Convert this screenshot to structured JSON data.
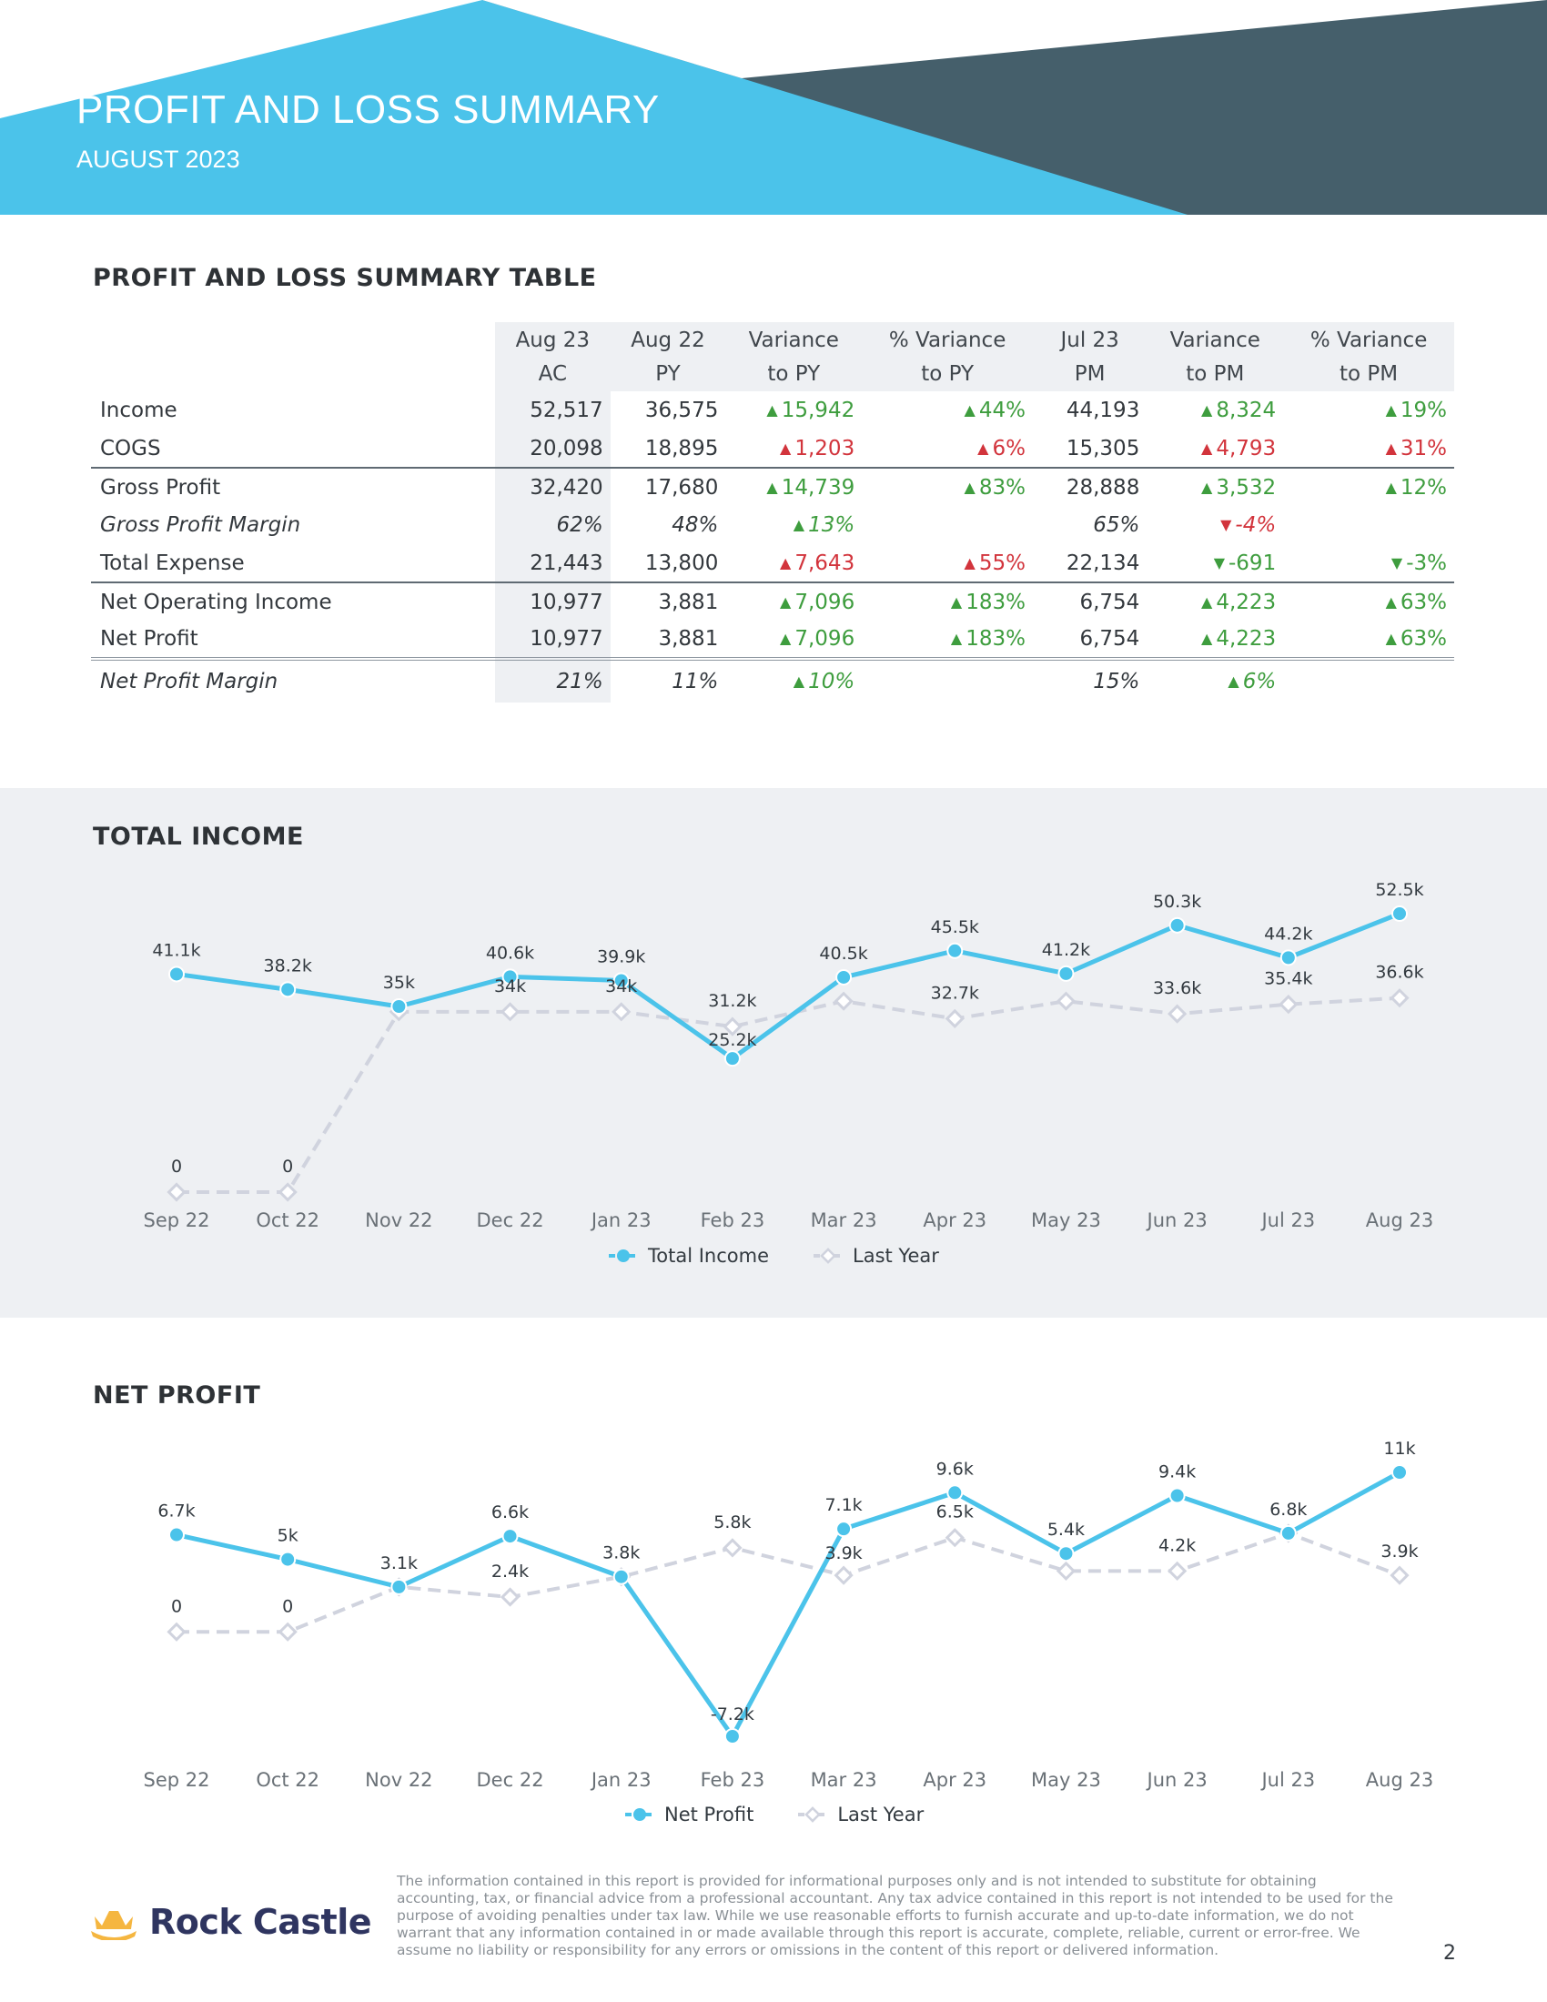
{
  "header": {
    "title": "PROFIT AND LOSS SUMMARY",
    "subtitle": "AUGUST 2023",
    "colors": {
      "primary": "#4bc3ea",
      "dark": "#455f6b"
    }
  },
  "table_section": {
    "heading": "PROFIT AND LOSS SUMMARY TABLE",
    "columns": [
      {
        "top": "Aug 23",
        "bottom": "AC"
      },
      {
        "top": "Aug 22",
        "bottom": "PY"
      },
      {
        "top": "Variance",
        "bottom": "to PY"
      },
      {
        "top": "% Variance",
        "bottom": "to PY"
      },
      {
        "top": "Jul 23",
        "bottom": "PM"
      },
      {
        "top": "Variance",
        "bottom": "to PM"
      },
      {
        "top": "% Variance",
        "bottom": "to PM"
      }
    ],
    "rows": [
      {
        "label": "Income",
        "style": "normal",
        "ac": "52,517",
        "py": "36,575",
        "var_py": {
          "value": "15,942",
          "dir": "up",
          "tone": "good"
        },
        "pct_py": {
          "value": "44%",
          "dir": "up",
          "tone": "good"
        },
        "pm": "44,193",
        "var_pm": {
          "value": "8,324",
          "dir": "up",
          "tone": "good"
        },
        "pct_pm": {
          "value": "19%",
          "dir": "up",
          "tone": "good"
        }
      },
      {
        "label": "COGS",
        "style": "normal",
        "ac": "20,098",
        "py": "18,895",
        "var_py": {
          "value": "1,203",
          "dir": "up",
          "tone": "bad"
        },
        "pct_py": {
          "value": "6%",
          "dir": "up",
          "tone": "bad"
        },
        "pm": "15,305",
        "var_pm": {
          "value": "4,793",
          "dir": "up",
          "tone": "bad"
        },
        "pct_pm": {
          "value": "31%",
          "dir": "up",
          "tone": "bad"
        }
      },
      {
        "label": "Gross Profit",
        "style": "sep",
        "ac": "32,420",
        "py": "17,680",
        "var_py": {
          "value": "14,739",
          "dir": "up",
          "tone": "good"
        },
        "pct_py": {
          "value": "83%",
          "dir": "up",
          "tone": "good"
        },
        "pm": "28,888",
        "var_pm": {
          "value": "3,532",
          "dir": "up",
          "tone": "good"
        },
        "pct_pm": {
          "value": "12%",
          "dir": "up",
          "tone": "good"
        }
      },
      {
        "label": "Gross Profit Margin",
        "style": "italic",
        "ac": "62%",
        "py": "48%",
        "var_py": {
          "value": "13%",
          "dir": "up",
          "tone": "good"
        },
        "pct_py": null,
        "pm": "65%",
        "var_pm": {
          "value": "-4%",
          "dir": "down",
          "tone": "bad"
        },
        "pct_pm": null
      },
      {
        "label": "Total Expense",
        "style": "normal",
        "ac": "21,443",
        "py": "13,800",
        "var_py": {
          "value": "7,643",
          "dir": "up",
          "tone": "bad"
        },
        "pct_py": {
          "value": "55%",
          "dir": "up",
          "tone": "bad"
        },
        "pm": "22,134",
        "var_pm": {
          "value": "-691",
          "dir": "down",
          "tone": "good"
        },
        "pct_pm": {
          "value": "-3%",
          "dir": "down",
          "tone": "good"
        }
      },
      {
        "label": "Net Operating Income",
        "style": "sep",
        "ac": "10,977",
        "py": "3,881",
        "var_py": {
          "value": "7,096",
          "dir": "up",
          "tone": "good"
        },
        "pct_py": {
          "value": "183%",
          "dir": "up",
          "tone": "good"
        },
        "pm": "6,754",
        "var_pm": {
          "value": "4,223",
          "dir": "up",
          "tone": "good"
        },
        "pct_pm": {
          "value": "63%",
          "dir": "up",
          "tone": "good"
        }
      },
      {
        "label": "Net Profit",
        "style": "normal",
        "ac": "10,977",
        "py": "3,881",
        "var_py": {
          "value": "7,096",
          "dir": "up",
          "tone": "good"
        },
        "pct_py": {
          "value": "183%",
          "dir": "up",
          "tone": "good"
        },
        "pm": "6,754",
        "var_pm": {
          "value": "4,223",
          "dir": "up",
          "tone": "good"
        },
        "pct_pm": {
          "value": "63%",
          "dir": "up",
          "tone": "good"
        }
      },
      {
        "label": "Net Profit Margin",
        "style": "italic-double",
        "ac": "21%",
        "py": "11%",
        "var_py": {
          "value": "10%",
          "dir": "up",
          "tone": "good"
        },
        "pct_py": null,
        "pm": "15%",
        "var_pm": {
          "value": "6%",
          "dir": "up",
          "tone": "good"
        },
        "pct_pm": null
      }
    ]
  },
  "income_section": {
    "heading": "TOTAL INCOME"
  },
  "profit_section": {
    "heading": "NET PROFIT"
  },
  "chart_data": [
    {
      "type": "line",
      "title": "TOTAL INCOME",
      "categories": [
        "Sep 22",
        "Oct 22",
        "Nov 22",
        "Dec 22",
        "Jan 23",
        "Feb 23",
        "Mar 23",
        "Apr 23",
        "May 23",
        "Jun 23",
        "Jul 23",
        "Aug 23"
      ],
      "ylim": [
        0,
        52.5
      ],
      "grid": false,
      "legend": "bottom-center",
      "series": [
        {
          "name": "Total Income",
          "color": "#4bc3ea",
          "dashed": false,
          "values": [
            41.1,
            38.2,
            35,
            40.6,
            39.9,
            25.2,
            40.5,
            45.5,
            41.2,
            50.3,
            44.2,
            52.5
          ],
          "labels": [
            "41.1k",
            "38.2k",
            "35k",
            "40.6k",
            "39.9k",
            "25.2k",
            "40.5k",
            "45.5k",
            "41.2k",
            "50.3k",
            "44.2k",
            "52.5k"
          ]
        },
        {
          "name": "Last Year",
          "color": "#d0d3de",
          "dashed": true,
          "values": [
            0,
            0,
            34,
            34,
            34,
            31.2,
            36,
            32.7,
            36,
            33.6,
            35.4,
            36.6
          ],
          "labels": [
            "0",
            "0",
            "",
            "34k",
            "34k",
            "31.2k",
            "",
            "32.7k",
            "",
            "33.6k",
            "35.4k",
            "36.6k"
          ]
        }
      ]
    },
    {
      "type": "line",
      "title": "NET PROFIT",
      "categories": [
        "Sep 22",
        "Oct 22",
        "Nov 22",
        "Dec 22",
        "Jan 23",
        "Feb 23",
        "Mar 23",
        "Apr 23",
        "May 23",
        "Jun 23",
        "Jul 23",
        "Aug 23"
      ],
      "ylim": [
        -7.2,
        11
      ],
      "grid": false,
      "legend": "bottom-center",
      "series": [
        {
          "name": "Net Profit",
          "color": "#4bc3ea",
          "dashed": false,
          "values": [
            6.7,
            5,
            3.1,
            6.6,
            3.8,
            -7.2,
            7.1,
            9.6,
            5.4,
            9.4,
            6.8,
            11
          ],
          "labels": [
            "6.7k",
            "5k",
            "3.1k",
            "6.6k",
            "3.8k",
            "-7.2k",
            "7.1k",
            "9.6k",
            "5.4k",
            "9.4k",
            "6.8k",
            "11k"
          ]
        },
        {
          "name": "Last Year",
          "color": "#d0d3de",
          "dashed": true,
          "values": [
            0,
            0,
            3.1,
            2.4,
            3.8,
            5.8,
            3.9,
            6.5,
            4.2,
            4.2,
            6.8,
            3.9
          ],
          "labels": [
            "0",
            "0",
            "",
            "2.4k",
            "",
            "5.8k",
            "3.9k",
            "6.5k",
            "",
            "4.2k",
            "",
            "3.9k"
          ]
        }
      ]
    }
  ],
  "footer": {
    "brand": "Rock Castle",
    "brand_icon": "crown-icon",
    "disclaimer": "The information contained in this report is provided for informational purposes only and is not intended to substitute for obtaining accounting, tax, or financial advice from a professional accountant. Any tax advice contained in this report is not intended to be used for the purpose of avoiding penalties under tax law. While we use reasonable efforts to furnish accurate and up-to-date information, we do not warrant that any information contained in or made available through this report is accurate, complete, reliable, current or error-free. We assume no liability or responsibility for any errors or omissions in the content of this report or delivered information.",
    "page_number": "2"
  }
}
